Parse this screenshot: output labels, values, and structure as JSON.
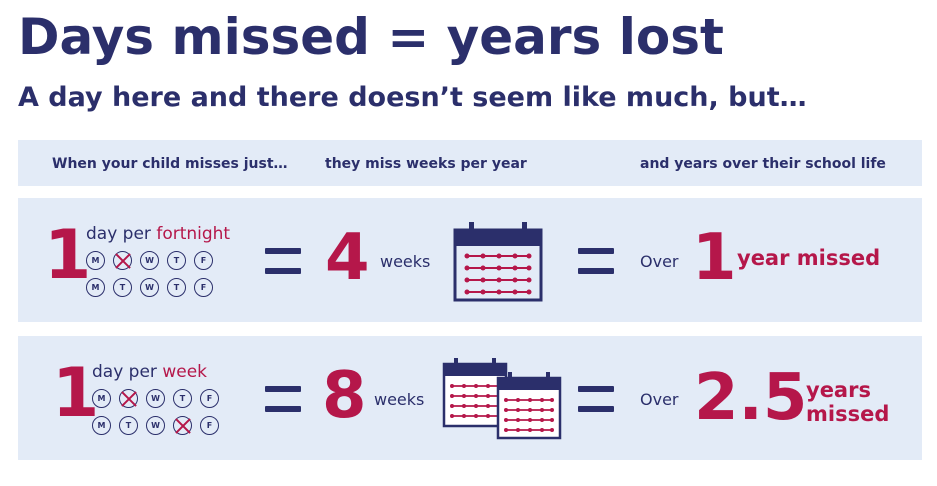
{
  "title": "Days missed = years lost",
  "subtitle": "A day here and there doesn’t seem like much, but…",
  "headers": {
    "col1": "When your child misses just…",
    "col2": "they miss weeks per year",
    "col3": "and years over their school life"
  },
  "colors": {
    "navy": "#2b2f6b",
    "crimson": "#b5174a",
    "band": "#e3ebf7"
  },
  "rows": [
    {
      "count": "1",
      "freq_prefix": "day per ",
      "freq_accent": "fortnight",
      "days_week1": [
        "M",
        "T",
        "W",
        "T",
        "F"
      ],
      "days_week2": [
        "M",
        "T",
        "W",
        "T",
        "F"
      ],
      "missed": "Tuesday of week 1",
      "weeks_value": "4",
      "weeks_label": "weeks",
      "calendar_icon": "calendar-icon",
      "over_label": "Over",
      "years_value": "1",
      "years_label_line1": "year missed",
      "years_label_line2": ""
    },
    {
      "count": "1",
      "freq_prefix": "day per ",
      "freq_accent": "week",
      "days_week1": [
        "M",
        "T",
        "W",
        "T",
        "F"
      ],
      "days_week2": [
        "M",
        "T",
        "W",
        "T",
        "F"
      ],
      "missed": "Tuesday of week 1, Thursday of week 2",
      "weeks_value": "8",
      "weeks_label": "weeks",
      "calendar_icon": "two-calendars-icon",
      "over_label": "Over",
      "years_value": "2.5",
      "years_label_line1": "years",
      "years_label_line2": "missed"
    }
  ]
}
